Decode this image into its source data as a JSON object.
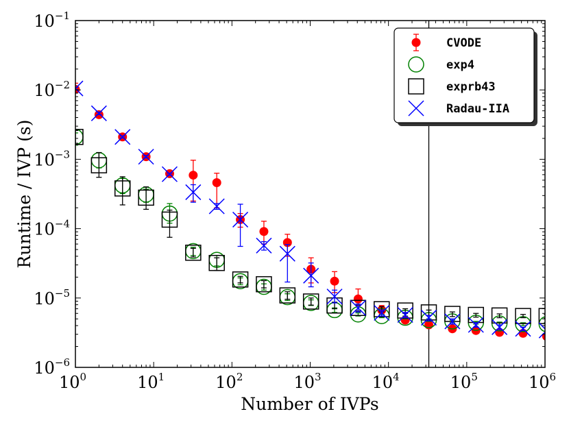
{
  "chart_data": {
    "type": "scatter",
    "xscale": "log",
    "yscale": "log",
    "xlim": [
      1,
      1000000
    ],
    "ylim": [
      1e-06,
      0.1
    ],
    "xlabel": "Number of IVPs",
    "ylabel": "Runtime / IVP (s)",
    "x_ticks": [
      {
        "base": "10",
        "exp": "0"
      },
      {
        "base": "10",
        "exp": "1"
      },
      {
        "base": "10",
        "exp": "2"
      },
      {
        "base": "10",
        "exp": "3"
      },
      {
        "base": "10",
        "exp": "4"
      },
      {
        "base": "10",
        "exp": "5"
      },
      {
        "base": "10",
        "exp": "6"
      }
    ],
    "y_ticks": [
      {
        "base": "10",
        "exp": "−6"
      },
      {
        "base": "10",
        "exp": "−5"
      },
      {
        "base": "10",
        "exp": "−4"
      },
      {
        "base": "10",
        "exp": "−3"
      },
      {
        "base": "10",
        "exp": "−2"
      },
      {
        "base": "10",
        "exp": "−1"
      }
    ],
    "vline_x": 32768,
    "legend_position": "top-right",
    "x": [
      1,
      2,
      4,
      8,
      16,
      32,
      64,
      128,
      256,
      512,
      1024,
      2048,
      4096,
      8192,
      16384,
      32768,
      65536,
      131072,
      262144,
      524288,
      1048576
    ],
    "series": [
      {
        "name": "CVODE",
        "marker": "circle-filled",
        "color": "#ff0000",
        "values": [
          0.0102,
          0.0044,
          0.0021,
          0.00109,
          0.00062,
          0.00059,
          0.00046,
          0.000135,
          9.1e-05,
          6.3e-05,
          2.6e-05,
          1.75e-05,
          9.7e-06,
          6.7e-06,
          4.8e-06,
          4.1e-06,
          3.6e-06,
          3.4e-06,
          3.2e-06,
          3.1e-06,
          2.8e-06
        ],
        "err_low": [
          0.0098,
          0.0041,
          0.00198,
          0.00104,
          0.00059,
          0.00025,
          0.0002,
          0.000105,
          6e-05,
          4e-05,
          1.65e-05,
          1.2e-05,
          7.8e-06,
          5.8e-06,
          4.4e-06,
          3.8e-06,
          3.4e-06,
          3.2e-06,
          3e-06,
          2.9e-06,
          2.6e-06
        ],
        "err_high": [
          0.0125,
          0.0048,
          0.00223,
          0.00115,
          0.00065,
          0.00097,
          0.00063,
          0.000165,
          0.000128,
          8.3e-05,
          3.8e-05,
          2.4e-05,
          1.35e-05,
          7.8e-06,
          5.2e-06,
          4.4e-06,
          3.8e-06,
          3.6e-06,
          3.4e-06,
          3.3e-06,
          3e-06
        ]
      },
      {
        "name": "exp4",
        "marker": "circle-open",
        "color": "#008000",
        "values": [
          0.0021,
          0.00097,
          0.00042,
          0.00031,
          0.000165,
          4.75e-05,
          3.55e-05,
          1.75e-05,
          1.45e-05,
          1.03e-05,
          8.5e-06,
          6.7e-06,
          5.8e-06,
          5.5e-06,
          5.2e-06,
          4.8e-06,
          4.6e-06,
          4.4e-06,
          4.3e-06,
          4.2e-06,
          4.2e-06
        ],
        "err_low": [
          0.0016,
          0.00075,
          0.00032,
          0.00024,
          0.00012,
          4.1e-05,
          2.9e-05,
          1.55e-05,
          1.3e-05,
          9.2e-06,
          7.8e-06,
          6.2e-06,
          5.5e-06,
          5.2e-06,
          5e-06,
          4.6e-06,
          4.4e-06,
          4.2e-06,
          4.1e-06,
          4e-06,
          4e-06
        ],
        "err_high": [
          0.0024,
          0.00125,
          0.00053,
          0.00037,
          0.00023,
          5.4e-05,
          4.1e-05,
          1.95e-05,
          1.6e-05,
          1.15e-05,
          9.4e-06,
          7.2e-06,
          6.1e-06,
          5.8e-06,
          5.5e-06,
          5e-06,
          4.8e-06,
          4.6e-06,
          4.5e-06,
          4.4e-06,
          4.4e-06
        ]
      },
      {
        "name": "exprb43",
        "marker": "square-open",
        "color": "#000000",
        "values": [
          0.0021,
          0.00082,
          0.00038,
          0.00028,
          0.000135,
          4.5e-05,
          3.2e-05,
          1.85e-05,
          1.58e-05,
          1.09e-05,
          8.9e-06,
          7.8e-06,
          7.2e-06,
          6.9e-06,
          6.6e-06,
          6.2e-06,
          5.9e-06,
          5.7e-06,
          5.6e-06,
          5.5e-06,
          5.5e-06
        ],
        "err_low": [
          0.0017,
          0.00055,
          0.00022,
          0.00019,
          7.5e-05,
          3.9e-05,
          2.5e-05,
          1.65e-05,
          1.4e-05,
          9.6e-06,
          7.9e-06,
          7e-06,
          6.5e-06,
          6.3e-06,
          6e-06,
          5.6e-06,
          5.4e-06,
          5.3e-06,
          5.2e-06,
          5.2e-06,
          5.1e-06
        ],
        "err_high": [
          0.0026,
          0.00125,
          0.00056,
          0.0004,
          0.000185,
          5.2e-05,
          3.8e-05,
          2.05e-05,
          1.78e-05,
          1.23e-05,
          1e-05,
          8.7e-06,
          7.9e-06,
          7.5e-06,
          7e-06,
          6.7e-06,
          6.3e-06,
          6e-06,
          5.9e-06,
          5.8e-06,
          5.8e-06
        ]
      },
      {
        "name": "Radau-IIA",
        "marker": "x",
        "color": "#0000ff",
        "values": [
          0.0105,
          0.0046,
          0.0021,
          0.00109,
          0.00061,
          0.000335,
          0.00021,
          0.000135,
          5.7e-05,
          4.35e-05,
          2.1e-05,
          1.05e-05,
          7.2e-06,
          6.1e-06,
          5.7e-06,
          5.2e-06,
          4.6e-06,
          4.1e-06,
          3.8e-06,
          3.6e-06,
          3.4e-06
        ],
        "err_low": [
          0.0101,
          0.0044,
          0.00203,
          0.00105,
          0.00059,
          0.00024,
          0.00019,
          5.55e-05,
          4.9e-05,
          1.7e-05,
          1.45e-05,
          8.5e-06,
          6.3e-06,
          5.5e-06,
          5.2e-06,
          4.7e-06,
          4.2e-06,
          3.8e-06,
          3.5e-06,
          3.4e-06,
          3.1e-06
        ],
        "err_high": [
          0.0109,
          0.0048,
          0.00217,
          0.00113,
          0.00063,
          0.00043,
          0.00023,
          0.000225,
          6.5e-05,
          5.9e-05,
          3.2e-05,
          1.3e-05,
          8.2e-06,
          6.7e-06,
          6.2e-06,
          5.6e-06,
          5e-06,
          4.4e-06,
          4.1e-06,
          3.8e-06,
          3.7e-06
        ]
      }
    ]
  }
}
